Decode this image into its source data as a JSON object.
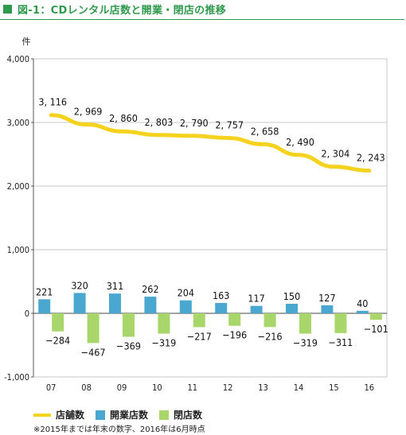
{
  "title": "図-1：CDレンタル店数と開業・閉店の推移",
  "colors": {
    "title": "#2f9a4c",
    "line": "#f5d21e",
    "open": "#4aa8d0",
    "close": "#a9d66a",
    "grid": "#c9c9c9"
  },
  "legend": {
    "stores": "店舗数",
    "open": "開業店数",
    "close": "閉店数"
  },
  "note": "※2015年までは年末の数字、2016年は6月時点",
  "chart_data": {
    "type": "bar",
    "ylabel": "件",
    "ylim": [
      -1000,
      4000
    ],
    "yticks": [
      4000,
      3000,
      2000,
      1000,
      0,
      -1000
    ],
    "ytick_labels": [
      "4,000",
      "3,000",
      "2,000",
      "1,000",
      "0",
      "-1,000"
    ],
    "categories": [
      "07",
      "08",
      "09",
      "10",
      "11",
      "12",
      "13",
      "14",
      "15",
      "16"
    ],
    "grid": true,
    "legend_position": "bottom",
    "series": [
      {
        "name": "店舗数",
        "kind": "line",
        "values": [
          3116,
          2969,
          2860,
          2803,
          2790,
          2757,
          2658,
          2490,
          2304,
          2243
        ],
        "labels": [
          "3, 116",
          "2, 969",
          "2, 860",
          "2, 803",
          "2, 790",
          "2, 757",
          "2, 658",
          "2, 490",
          "2, 304",
          "2, 243"
        ]
      },
      {
        "name": "開業店数",
        "kind": "bar",
        "values": [
          221,
          320,
          311,
          262,
          204,
          163,
          117,
          150,
          127,
          40
        ],
        "labels": [
          "221",
          "320",
          "311",
          "262",
          "204",
          "163",
          "117",
          "150",
          "127",
          "40"
        ]
      },
      {
        "name": "閉店数",
        "kind": "bar",
        "values": [
          -284,
          -467,
          -369,
          -319,
          -217,
          -196,
          -216,
          -319,
          -311,
          -101
        ],
        "labels": [
          "−284",
          "−467",
          "−369",
          "−319",
          "−217",
          "−196",
          "−216",
          "−319",
          "−311",
          "−101"
        ]
      }
    ]
  }
}
